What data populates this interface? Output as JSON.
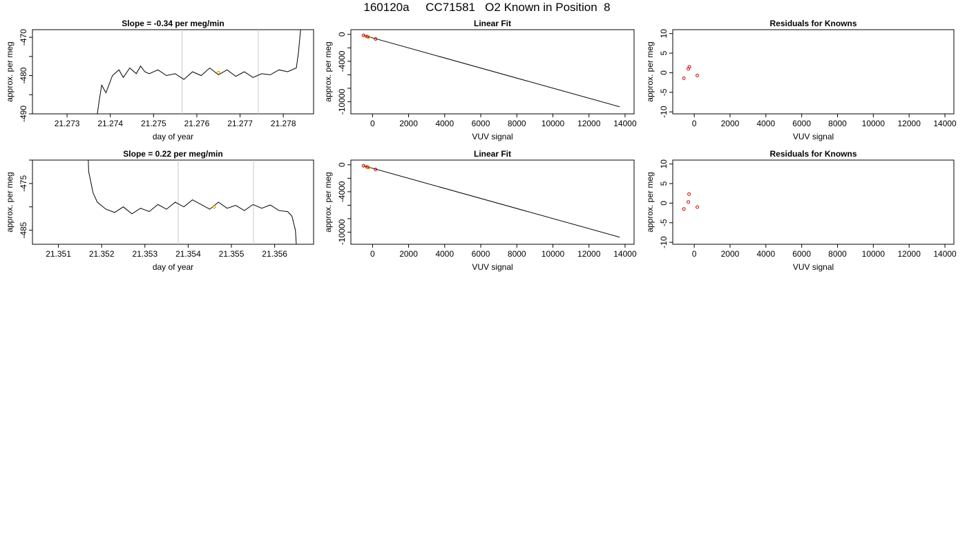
{
  "page_title": "160120a     CC71581   O2 Known in Position  8",
  "colors": {
    "trace": "#000000",
    "marker": "#e69f00",
    "knowns": "#cc0000",
    "window": "#c8c8c8"
  },
  "chart_data": [
    {
      "id": "p1",
      "type": "line",
      "title": "Slope =  -0.34  per meg/min",
      "xlabel": "day of year",
      "ylabel": "approx. per meg",
      "xlim": [
        21.2722,
        21.2787
      ],
      "ylim": [
        -490,
        -468
      ],
      "xticks": [
        "21.273",
        "21.274",
        "21.275",
        "21.276",
        "21.277",
        "21.278"
      ],
      "yticks": [
        "-470",
        "-480",
        "-490"
      ],
      "ytick_values": [
        -470,
        -480,
        -490
      ],
      "ytick_minor": [
        -475,
        -485
      ],
      "vlines": [
        21.27566,
        21.27742
      ],
      "marker": [
        21.2765,
        -479.2
      ],
      "series": [
        {
          "x": [
            21.2737,
            21.27375,
            21.2738,
            21.2739,
            21.27405,
            21.2742,
            21.2743,
            21.27445,
            21.2746,
            21.2747,
            21.2748,
            21.2749,
            21.2751,
            21.2753,
            21.2755,
            21.2757,
            21.2759,
            21.2761,
            21.2763,
            21.2765,
            21.2767,
            21.2769,
            21.2771,
            21.2773,
            21.2775,
            21.2777,
            21.2779,
            21.2781,
            21.2783,
            21.27835,
            21.2784
          ],
          "y": [
            -490,
            -486,
            -482.5,
            -484.5,
            -480,
            -478.5,
            -480.5,
            -478,
            -479.5,
            -477.5,
            -479,
            -479.5,
            -478.5,
            -480,
            -479.5,
            -481,
            -479,
            -480,
            -478,
            -479.8,
            -478.5,
            -480.2,
            -479,
            -480.5,
            -479.5,
            -479.8,
            -478.5,
            -479,
            -478,
            -474,
            -468
          ]
        }
      ]
    },
    {
      "id": "p2",
      "type": "scatter",
      "title": "Linear Fit",
      "xlabel": "VUV signal",
      "ylabel": "approx. per meg",
      "xlim": [
        -1200,
        14500
      ],
      "ylim": [
        -11800,
        700
      ],
      "xticks": [
        "0",
        "2000",
        "4000",
        "6000",
        "8000",
        "10000",
        "12000",
        "14000"
      ],
      "yticks": [
        "0",
        "-4000",
        "-10000"
      ],
      "ytick_values": [
        0,
        -4000,
        -10000
      ],
      "ytick_minor": [
        -2000,
        -6000,
        -8000
      ],
      "fit_line": [
        [
          -500,
          -140
        ],
        [
          13700,
          -10750
        ]
      ],
      "points": [
        [
          -500,
          -150
        ],
        [
          -300,
          -330
        ],
        [
          -250,
          -370
        ],
        [
          170,
          -680
        ]
      ],
      "marker": [
        -230,
        -400
      ]
    },
    {
      "id": "p3",
      "type": "scatter",
      "title": "Residuals for Knowns",
      "xlabel": "VUV signal",
      "ylabel": "approx. per meg",
      "xlim": [
        -1200,
        14500
      ],
      "ylim": [
        -10.5,
        11
      ],
      "xticks": [
        "0",
        "2000",
        "4000",
        "6000",
        "8000",
        "10000",
        "12000",
        "14000"
      ],
      "yticks": [
        "10",
        "5",
        "0",
        "-5",
        "-10"
      ],
      "ytick_values": [
        10,
        5,
        0,
        -5,
        -10
      ],
      "points": [
        [
          -580,
          -1.4
        ],
        [
          -330,
          1.0
        ],
        [
          -270,
          1.5
        ],
        [
          170,
          -0.7
        ]
      ]
    },
    {
      "id": "p4",
      "type": "line",
      "title": "Slope =  0.22  per meg/min",
      "xlabel": "day of year",
      "ylabel": "approx. per meg",
      "xlim": [
        21.3504,
        21.3569
      ],
      "ylim": [
        -488,
        -470
      ],
      "xticks": [
        "21.351",
        "21.352",
        "21.353",
        "21.354",
        "21.355",
        "21.356"
      ],
      "yticks": [
        "-475",
        "-485"
      ],
      "ytick_values": [
        -475,
        -485
      ],
      "ytick_minor": [
        -470,
        -480
      ],
      "vlines": [
        21.35377,
        21.35551
      ],
      "marker": [
        21.3546,
        -480
      ],
      "series": [
        {
          "x": [
            21.35169,
            21.3517,
            21.3518,
            21.3519,
            21.3521,
            21.3523,
            21.3525,
            21.3527,
            21.3529,
            21.3531,
            21.3533,
            21.3535,
            21.3537,
            21.3539,
            21.3541,
            21.3543,
            21.3545,
            21.3547,
            21.3549,
            21.3551,
            21.3553,
            21.3555,
            21.3557,
            21.3559,
            21.3561,
            21.3563,
            21.3564,
            21.35648,
            21.3565
          ],
          "y": [
            -470,
            -472.5,
            -477,
            -479,
            -480.5,
            -481.2,
            -480,
            -481.5,
            -480.3,
            -481,
            -479.5,
            -480.5,
            -479,
            -480,
            -478.5,
            -479.5,
            -480.5,
            -479,
            -480.3,
            -479.7,
            -480.8,
            -479.5,
            -480.3,
            -479.6,
            -480.8,
            -481,
            -482,
            -485,
            -488
          ]
        }
      ]
    },
    {
      "id": "p5",
      "type": "scatter",
      "title": "Linear Fit",
      "xlabel": "VUV signal",
      "ylabel": "approx. per meg",
      "xlim": [
        -1200,
        14500
      ],
      "ylim": [
        -11800,
        700
      ],
      "xticks": [
        "0",
        "2000",
        "4000",
        "6000",
        "8000",
        "10000",
        "12000",
        "14000"
      ],
      "yticks": [
        "0",
        "-4000",
        "-10000"
      ],
      "ytick_values": [
        0,
        -4000,
        -10000
      ],
      "ytick_minor": [
        -2000,
        -6000,
        -8000
      ],
      "fit_line": [
        [
          -500,
          -140
        ],
        [
          13700,
          -10750
        ]
      ],
      "points": [
        [
          -500,
          -150
        ],
        [
          -300,
          -320
        ],
        [
          -250,
          -380
        ],
        [
          170,
          -700
        ]
      ],
      "marker": [
        -230,
        -400
      ]
    },
    {
      "id": "p6",
      "type": "scatter",
      "title": "Residuals for Knowns",
      "xlabel": "VUV signal",
      "ylabel": "approx. per meg",
      "xlim": [
        -1200,
        14500
      ],
      "ylim": [
        -10.5,
        11
      ],
      "xticks": [
        "0",
        "2000",
        "4000",
        "6000",
        "8000",
        "10000",
        "12000",
        "14000"
      ],
      "yticks": [
        "10",
        "5",
        "0",
        "-5",
        "-10"
      ],
      "ytick_values": [
        10,
        5,
        0,
        -5,
        -10
      ],
      "points": [
        [
          -580,
          -1.5
        ],
        [
          -330,
          0.3
        ],
        [
          -290,
          2.3
        ],
        [
          170,
          -1.0
        ]
      ]
    }
  ]
}
